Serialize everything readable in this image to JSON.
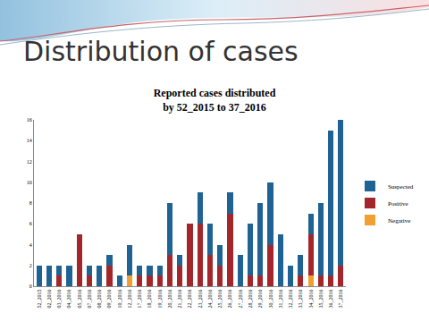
{
  "slide": {
    "title": "Distribution of cases"
  },
  "chart_data": {
    "type": "bar",
    "title": "Reported cases distributed\nby 52_2015 to 37_2016",
    "categories": [
      "52_2015",
      "02_2016",
      "03_2016",
      "04_2016",
      "05_2016",
      "07_2016",
      "08_2016",
      "09_2016",
      "10_2016",
      "12_2016",
      "17_2016",
      "18_2016",
      "19_2016",
      "20_2016",
      "21_2016",
      "22_2016",
      "23_2016",
      "24_2016",
      "25_2016",
      "26_2016",
      "27_2016",
      "28_2016",
      "29_2016",
      "30_2016",
      "31_2016",
      "32_2016",
      "33_2016",
      "34_2016",
      "35_2016",
      "36_2016",
      "37_2016"
    ],
    "series": [
      {
        "name": "Negative",
        "color": "#f0a030",
        "values": [
          0,
          0,
          0,
          0,
          0,
          0,
          0,
          0,
          0,
          1,
          0,
          0,
          0,
          0,
          0,
          0,
          0,
          0,
          0,
          0,
          0,
          0,
          0,
          0,
          0,
          0,
          0,
          1,
          0,
          0,
          0
        ]
      },
      {
        "name": "Positive",
        "color": "#a3262a",
        "values": [
          0,
          0,
          1,
          0,
          5,
          1,
          0,
          2,
          0,
          0,
          1,
          1,
          1,
          3,
          2,
          6,
          6,
          3,
          2,
          7,
          0,
          1,
          1,
          4,
          0,
          0,
          1,
          4,
          1,
          1,
          2
        ]
      },
      {
        "name": "Suspected",
        "color": "#1f6394",
        "values": [
          2,
          2,
          1,
          2,
          0,
          1,
          2,
          1,
          1,
          3,
          1,
          1,
          1,
          5,
          1,
          0,
          3,
          3,
          2,
          2,
          3,
          5,
          7,
          6,
          5,
          2,
          2,
          2,
          7,
          14,
          14
        ]
      }
    ],
    "stacked": true,
    "ylim": [
      0,
      16
    ],
    "yticks": [
      0,
      2,
      4,
      6,
      8,
      10,
      12,
      14,
      16
    ],
    "grid": false,
    "legend": "right"
  }
}
